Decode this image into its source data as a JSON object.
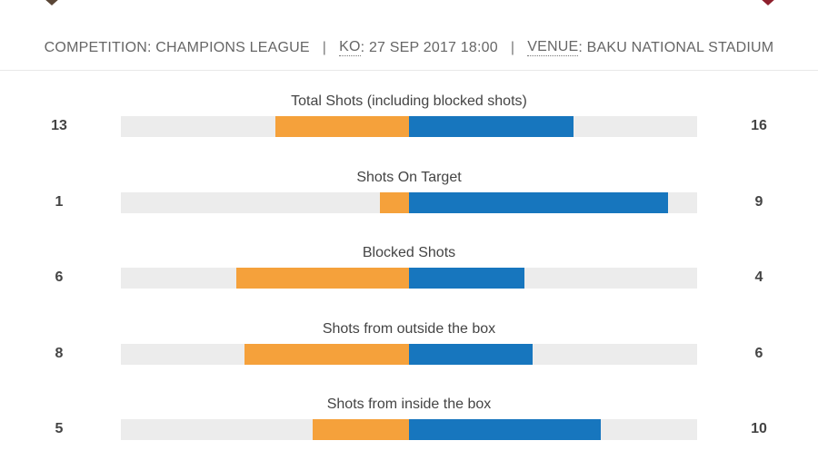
{
  "colors": {
    "home": "#f5a13b",
    "away": "#1776be",
    "track": "#ececec"
  },
  "icons": {
    "home_crest": "home-team-crest-icon",
    "away_crest": "away-team-crest-icon"
  },
  "match_info": {
    "competition_label": "COMPETITION:",
    "competition": "CHAMPIONS LEAGUE",
    "ko_label": "KO",
    "ko_value": ": 27 SEP 2017 18:00",
    "venue_label": "VENUE",
    "venue_value": ": BAKU NATIONAL STADIUM",
    "separator": "|"
  },
  "stats": [
    {
      "label": "Total Shots (including blocked shots)",
      "home": 13,
      "away": 16,
      "max": 28
    },
    {
      "label": "Shots On Target",
      "home": 1,
      "away": 9,
      "max": 10
    },
    {
      "label": "Blocked Shots",
      "home": 6,
      "away": 4,
      "max": 10
    },
    {
      "label": "Shots from outside the box",
      "home": 8,
      "away": 6,
      "max": 14
    },
    {
      "label": "Shots from inside the box",
      "home": 5,
      "away": 10,
      "max": 15
    }
  ]
}
